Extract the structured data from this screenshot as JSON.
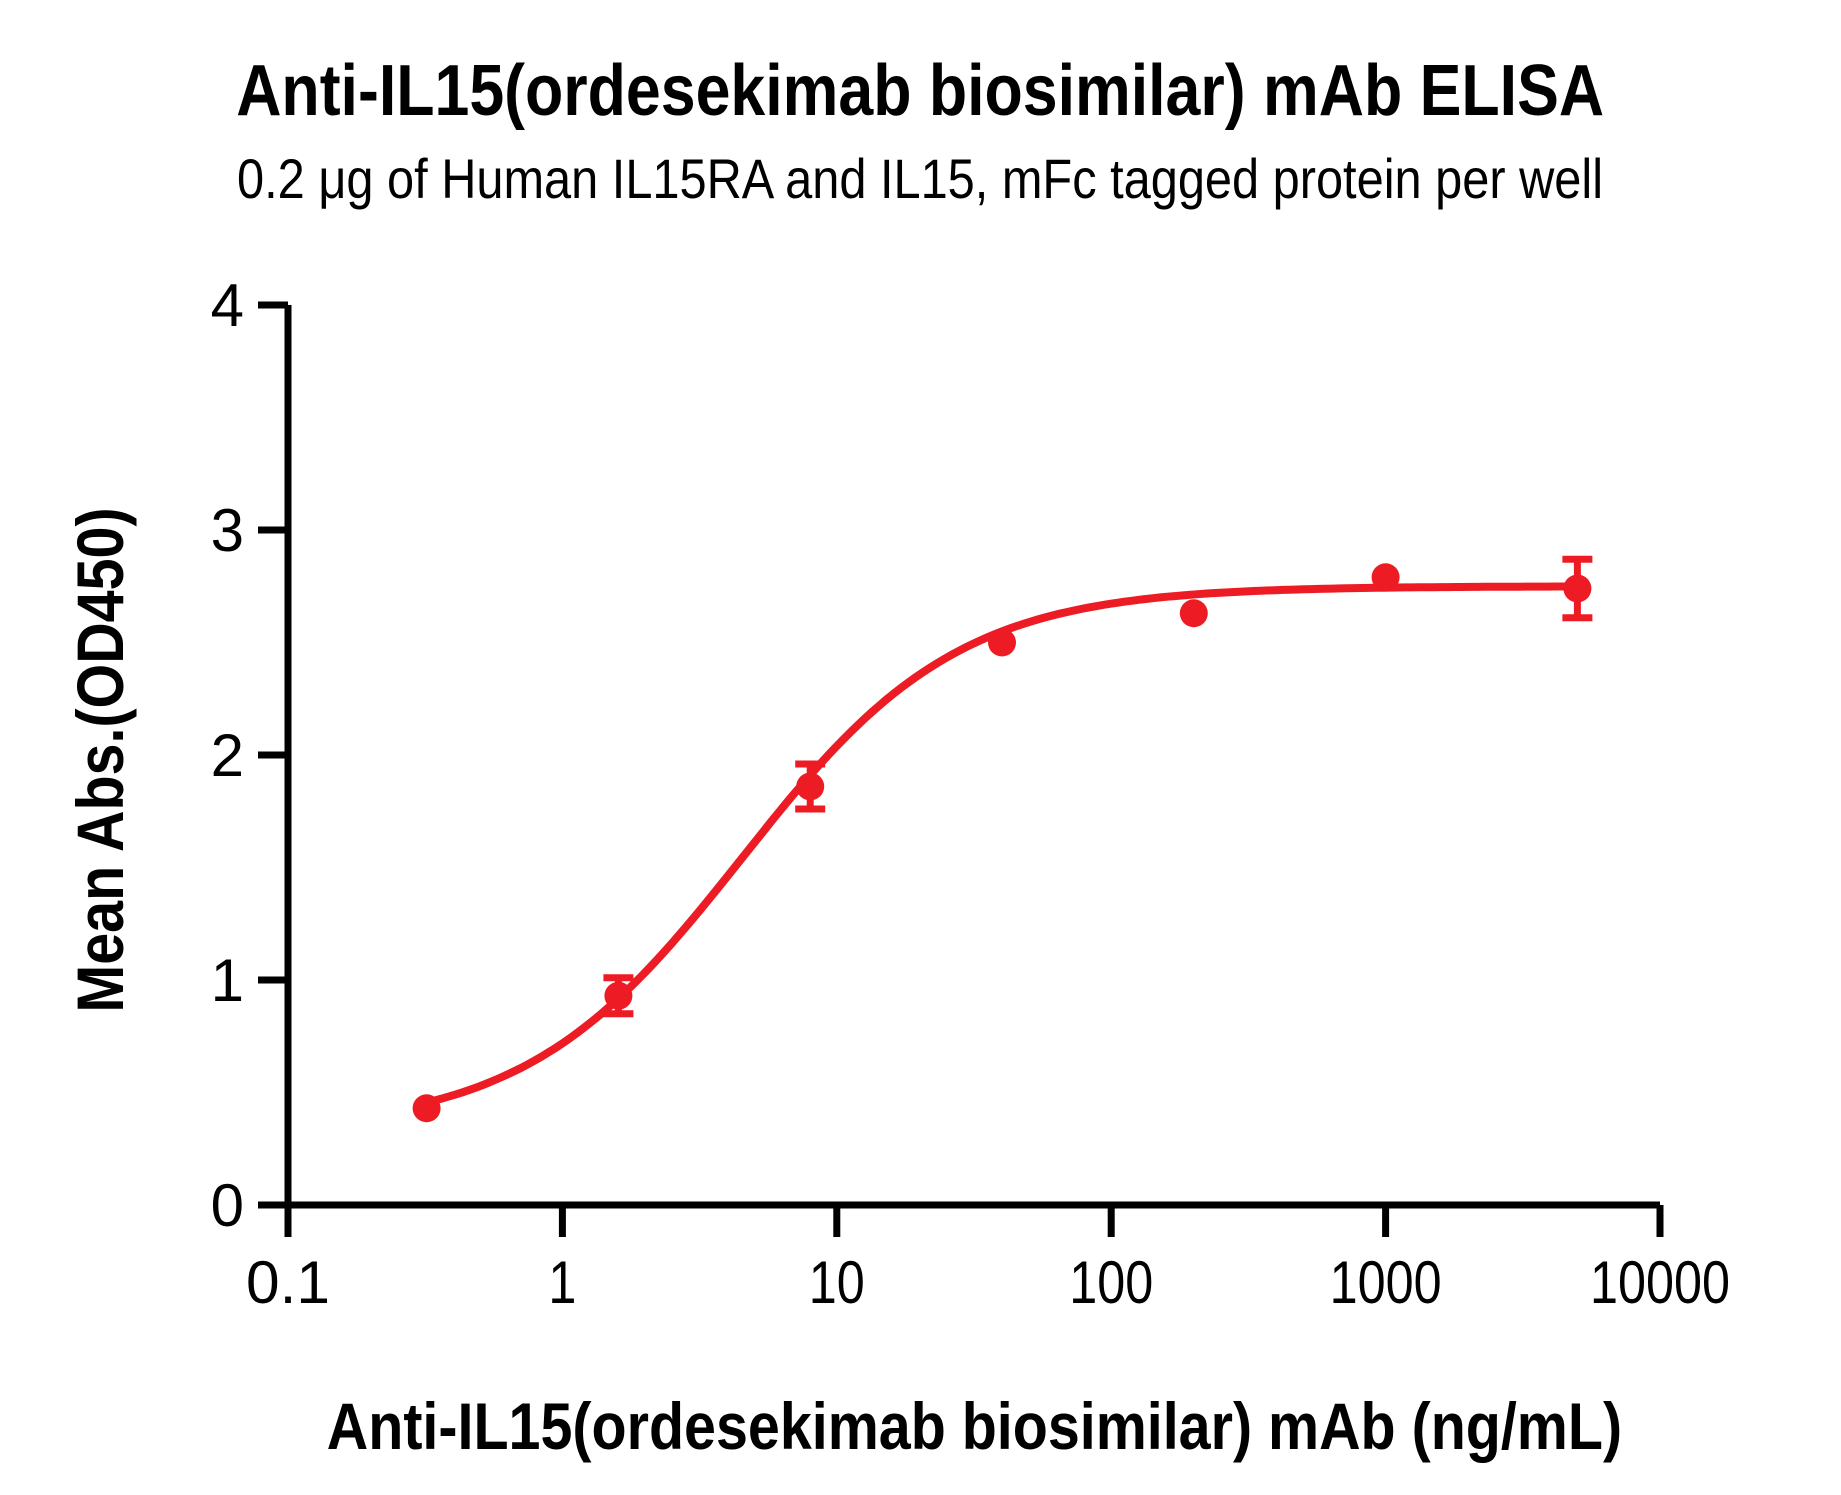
{
  "title": "Anti-IL15(ordesekimab biosimilar) mAb ELISA",
  "subtitle": "0.2 μg of Human IL15RA and IL15, mFc tagged protein per well",
  "colors": {
    "series": "#ED1C24",
    "axis": "#000000",
    "text": "#000000",
    "background": "#FFFFFF"
  },
  "chart_data": {
    "type": "scatter",
    "title": "Anti-IL15(ordesekimab biosimilar) mAb ELISA",
    "subtitle": "0.2 μg of Human IL15RA and IL15, mFc tagged protein per well",
    "xlabel": "Anti-IL15(ordesekimab biosimilar) mAb (ng/mL)",
    "ylabel": "Mean Abs.(OD450)",
    "x_unit": "ng/mL",
    "y_unit": "OD450",
    "x_scale": "log10",
    "xlim": [
      0.1,
      10000
    ],
    "ylim": [
      0,
      4
    ],
    "x_tick_labels": [
      "0.1",
      "1",
      "10",
      "100",
      "1000",
      "10000"
    ],
    "y_tick_labels": [
      "0",
      "1",
      "2",
      "3",
      "4"
    ],
    "grid": false,
    "legend_position": "none",
    "series": [
      {
        "name": "Anti-IL15(ordesekimab biosimilar) mAb",
        "marker": "circle",
        "color": "#ED1C24",
        "x": [
          0.32,
          1.6,
          8,
          40,
          200,
          1000,
          5000
        ],
        "y": [
          0.43,
          0.93,
          1.86,
          2.5,
          2.63,
          2.79,
          2.74
        ],
        "y_err": [
          0,
          0.08,
          0.1,
          0,
          0,
          0,
          0.13
        ]
      }
    ],
    "fit_curve": {
      "model": "4PL",
      "bottom": 0.33,
      "top": 2.75,
      "ec50": 4.5,
      "hill": 1.1,
      "x_start": 0.32,
      "x_end": 5000
    }
  }
}
